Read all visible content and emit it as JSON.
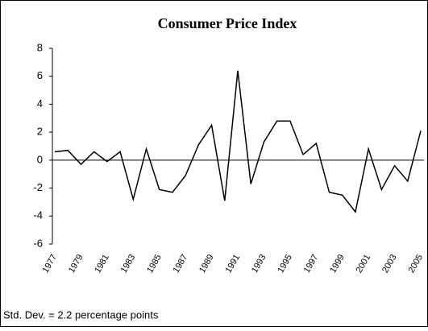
{
  "chart_data": {
    "type": "line",
    "title": "Consumer Price Index",
    "categories": [
      "1977",
      null,
      "1979",
      null,
      "1981",
      null,
      "1983",
      null,
      "1985",
      null,
      "1987",
      null,
      "1989",
      null,
      "1991",
      null,
      "1993",
      null,
      "1995",
      null,
      "1997",
      null,
      "1999",
      null,
      "2001",
      null,
      "2003",
      null,
      "2005"
    ],
    "values": [
      0.6,
      0.7,
      -0.3,
      0.6,
      -0.1,
      0.6,
      -2.8,
      0.8,
      -2.1,
      -2.3,
      -1.1,
      1.1,
      2.5,
      -2.9,
      6.4,
      -1.7,
      1.3,
      2.8,
      2.8,
      0.4,
      1.2,
      -2.3,
      -2.5,
      -3.7,
      0.8,
      -2.1,
      -0.4,
      -1.5,
      2.1
    ],
    "color": "#000000",
    "ylim": [
      -6,
      8
    ],
    "yticks": [
      -6,
      -4,
      -2,
      0,
      2,
      4,
      6,
      8
    ],
    "note": "Std. Dev. = 2.2 percentage points"
  }
}
